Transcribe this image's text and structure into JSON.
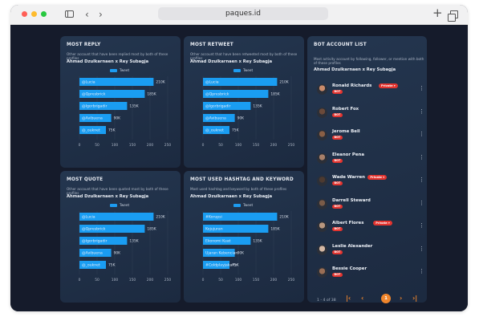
{
  "browser": {
    "url": "paques.id"
  },
  "cards": [
    {
      "title": "MOST REPLY",
      "sub": "Other account that have been replied most by both of these profiles",
      "accounts": "Ahmad Dzulkarnaen x Rey Subagja",
      "legend": "Tweet",
      "chart_data": {
        "type": "bar",
        "categories": [
          "@Lucia",
          "@Qpresbrick",
          "@Igorbrigadir",
          "@Avibuena",
          "@_ouknet"
        ],
        "values": [
          210,
          185,
          135,
          90,
          75
        ],
        "value_labels": [
          "210K",
          "185K",
          "135K",
          "90K",
          "75K"
        ],
        "xticks": [
          "0",
          "50",
          "100",
          "150",
          "200",
          "250"
        ],
        "xlim": [
          0,
          250
        ],
        "grid": true
      }
    },
    {
      "title": "MOST RETWEET",
      "sub": "Other account that have been retweeted most by both of these profiles",
      "accounts": "Ahmad Dzulkarnaen x Rey Subagja",
      "legend": "Tweet",
      "chart_data": {
        "type": "bar",
        "categories": [
          "@Lucia",
          "@Qpresbrick",
          "@Igorbrigadir",
          "@Avibuena",
          "@_ouknet"
        ],
        "values": [
          210,
          185,
          135,
          90,
          75
        ],
        "value_labels": [
          "210K",
          "185K",
          "135K",
          "90K",
          "75K"
        ],
        "xticks": [
          "0",
          "50",
          "100",
          "150",
          "200",
          "250"
        ],
        "xlim": [
          0,
          250
        ],
        "grid": true
      }
    },
    {
      "title": "MOST QUOTE",
      "sub": "Other account that have been quoted most by both of these profiles",
      "accounts": "Ahmad Dzulkarnaen x Rey Subagja",
      "legend": "Tweet",
      "chart_data": {
        "type": "bar",
        "categories": [
          "@Lucia",
          "@Qpresbrick",
          "@Igorbrigadir",
          "@Avibuena",
          "@_ouknet"
        ],
        "values": [
          210,
          185,
          135,
          90,
          75
        ],
        "value_labels": [
          "210K",
          "185K",
          "135K",
          "90K",
          "75K"
        ],
        "xticks": [
          "0",
          "50",
          "100",
          "150",
          "200",
          "250"
        ],
        "xlim": [
          0,
          250
        ],
        "grid": true
      }
    },
    {
      "title": "MOST USED HASHTAG AND KEYWORD",
      "sub": "Most used hashtag and keyword by both of these profiles",
      "accounts": "Ahmad Dzulkarnaen x Rey Subagja",
      "legend": "Tweet",
      "chart_data": {
        "type": "bar",
        "categories": [
          "#Korupsi",
          "Kejujuran",
          "Ekonomi Kuat",
          "Ujaran Kebencian",
          "#Coldplayjakarta"
        ],
        "values": [
          210,
          185,
          135,
          90,
          75
        ],
        "value_labels": [
          "210K",
          "185K",
          "135K",
          "90K",
          "75K"
        ],
        "xticks": [
          "0",
          "50",
          "100",
          "150",
          "200",
          "250"
        ],
        "xlim": [
          0,
          250
        ],
        "grid": true
      }
    }
  ],
  "bot_list": {
    "title": "BOT ACCOUNT LIST",
    "sub": "Most activity account by following, follower, or mention with both of these profiles",
    "accounts": "Ahmad Dzulkarnaen x Rey Subagja",
    "bot_label": "BOT",
    "private_label": "Private",
    "items": [
      {
        "name": "Ronald Richards",
        "private": true
      },
      {
        "name": "Robert Fox",
        "private": false
      },
      {
        "name": "Jerome Bell",
        "private": false
      },
      {
        "name": "Eleanor Pena",
        "private": false
      },
      {
        "name": "Wade Warren",
        "private": true
      },
      {
        "name": "Darrell Steward",
        "private": false
      },
      {
        "name": "Albert Flores",
        "private": true
      },
      {
        "name": "Leslie Alexander",
        "private": false
      },
      {
        "name": "Bessie Cooper",
        "private": false
      }
    ],
    "pager": {
      "info": "1 - 4 of 38",
      "current": "1"
    }
  }
}
